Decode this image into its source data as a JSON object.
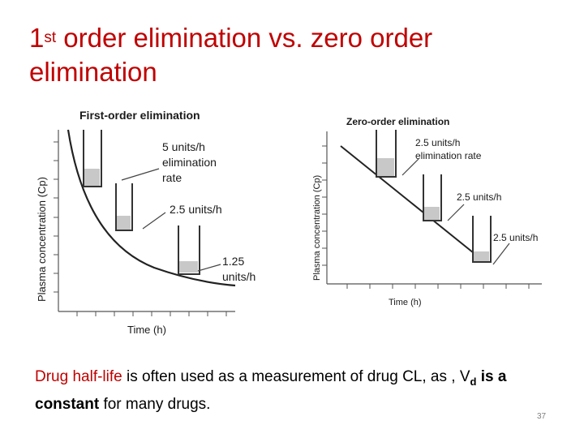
{
  "slide": {
    "title_num": "1",
    "title_sup": "st",
    "title_rest": " order elimination vs. zero order elimination",
    "caption": {
      "part1": "Drug half-life",
      "part2": " is often used as a measurement of drug CL, as , V",
      "part3_sub": "d",
      "part4": " is a constant",
      "part5": " for many drugs."
    },
    "slide_number": "37"
  },
  "first_order": {
    "title": "First-order elimination",
    "ylabel": "Plasma concentration (Cp)",
    "xlabel": "Time (h)",
    "annotations": {
      "a1_line1": "5 units/h",
      "a1_line2": "elimination",
      "a1_line3": "rate",
      "a2": "2.5 units/h",
      "a3_line1": "1.25",
      "a3_line2": "units/h"
    }
  },
  "zero_order": {
    "title": "Zero-order elimination",
    "ylabel": "Plasma concentration (Cp)",
    "xlabel": "Time (h)",
    "annotations": {
      "a1_line1": "2.5 units/h",
      "a1_line2": "elimination rate",
      "a2": "2.5 units/h",
      "a3": "2.5 units/h"
    }
  }
}
